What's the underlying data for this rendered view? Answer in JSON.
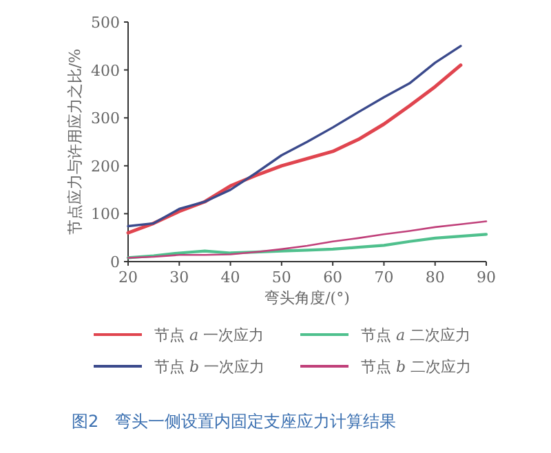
{
  "chart_data": {
    "type": "line",
    "xlabel": "弯头角度/(°)",
    "ylabel": "节点应力与许用应力之比/%",
    "x": [
      20,
      25,
      30,
      35,
      40,
      45,
      50,
      55,
      60,
      65,
      70,
      75,
      80,
      85,
      90
    ],
    "xlim": [
      20,
      90
    ],
    "xticks": [
      20,
      30,
      40,
      50,
      60,
      70,
      80,
      90
    ],
    "ylim": [
      0,
      500
    ],
    "yticks": [
      0,
      100,
      200,
      300,
      400,
      500
    ],
    "grid": false,
    "legend": "bottom",
    "marker": "none",
    "line_style": "solid",
    "series": [
      {
        "name": "节点 *a* 一次应力",
        "color": "#e0454f",
        "values": [
          60,
          80,
          105,
          125,
          158,
          180,
          200,
          215,
          230,
          255,
          287,
          325,
          365,
          410,
          null
        ]
      },
      {
        "name": "节点 *a* 二次应力",
        "color": "#4fc08d",
        "values": [
          8,
          12,
          18,
          22,
          18,
          20,
          22,
          24,
          26,
          30,
          34,
          42,
          49,
          53,
          57
        ]
      },
      {
        "name": "节点 *b* 一次应力",
        "color": "#3b4a8c",
        "values": [
          74,
          80,
          110,
          125,
          150,
          185,
          222,
          250,
          280,
          312,
          343,
          372,
          415,
          450,
          null
        ]
      },
      {
        "name": "节点 *b* 二次应力",
        "color": "#c0407a",
        "values": [
          8,
          10,
          14,
          14,
          15,
          20,
          26,
          33,
          42,
          49,
          57,
          64,
          72,
          78,
          84
        ]
      }
    ],
    "annotations": [
      "图2　弯头一侧设置内固定支座应力计算结果"
    ]
  }
}
